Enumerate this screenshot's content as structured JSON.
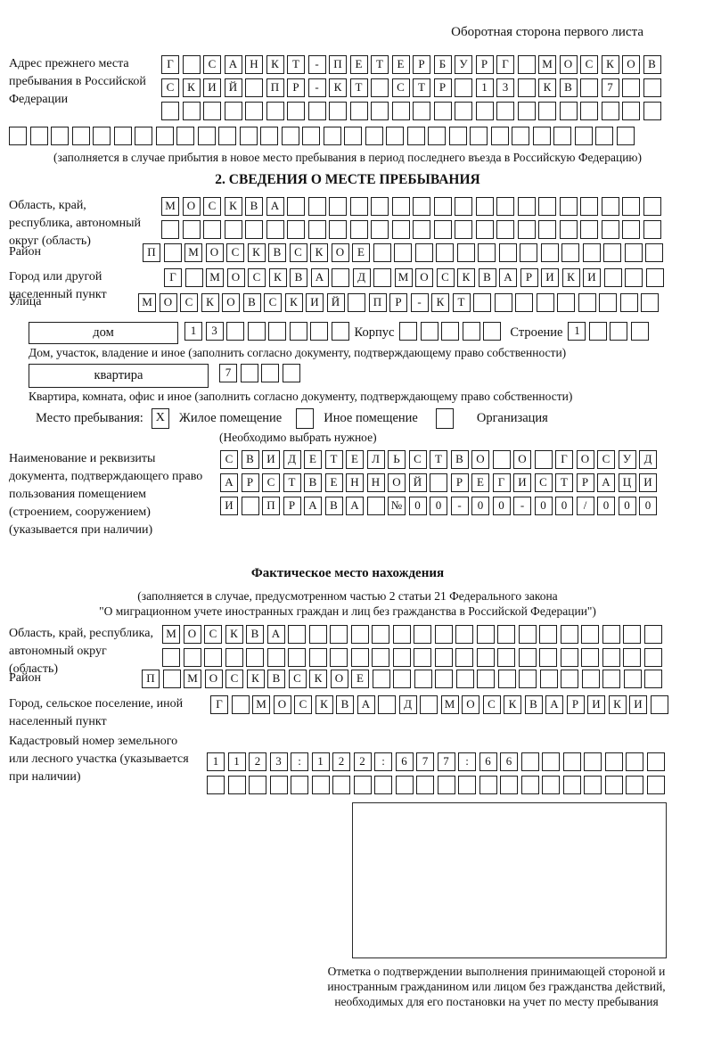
{
  "page": {
    "title_right": "Оборотная сторона первого листа"
  },
  "addr_prev": {
    "label": "Адрес прежнего места пребывания в Российской Федерации",
    "rows": [
      {
        "chars": "Г САНКТ-ПЕТЕРБУРГ МОСКОВ",
        "n": 24
      },
      {
        "chars": "СКИЙ ПР-КТ СТР 13 КВ 7",
        "n": 24
      },
      {
        "chars": "",
        "n": 24
      },
      {
        "chars": "",
        "n": 30
      }
    ],
    "note": "(заполняется в случае прибытия в новое место пребывания в период последнего въезда в Российскую Федерацию)"
  },
  "section2": {
    "title": "2. СВЕДЕНИЯ О МЕСТЕ ПРЕБЫВАНИЯ",
    "oblast": {
      "label": "Область, край, республика, автономный округ (область)",
      "rows": [
        {
          "chars": "МОСКВА",
          "n": 24
        },
        {
          "chars": "",
          "n": 24
        }
      ]
    },
    "raion": {
      "label": "Район",
      "row": {
        "chars": "П МОСКВСКОЕ",
        "n": 25
      }
    },
    "gorod": {
      "label": "Город или другой населенный пункт",
      "row": {
        "chars": "Г МОСКВА Д МОСКВАРИКИ",
        "n": 24
      }
    },
    "ulitsa": {
      "label": "Улица",
      "row": {
        "chars": "МОСКОВСКИЙ ПР-КТ",
        "n": 25
      }
    },
    "dom": {
      "box_label": "дом",
      "cells": {
        "chars": "13",
        "n": 8
      },
      "korpus_label": "Корпус",
      "korpus_cells": {
        "chars": "",
        "n": 5
      },
      "stroenie_label": "Строение",
      "stroenie_cells": {
        "chars": "1",
        "n": 4
      },
      "note": "Дом, участок, владение и иное (заполнить согласно документу, подтверждающему право собственности)"
    },
    "kvartira": {
      "box_label": "квартира",
      "cells": {
        "chars": "7",
        "n": 4
      },
      "note": "Квартира, комната, офис и иное (заполнить согласно документу, подтверждающему право собственности)"
    },
    "mesto": {
      "label": "Место пребывания:",
      "options": [
        {
          "label": "Жилое помещение",
          "box": "X"
        },
        {
          "label": "Иное помещение",
          "box": ""
        },
        {
          "label": "Организация",
          "box": ""
        }
      ],
      "note": "(Необходимо выбрать нужное)"
    },
    "doc": {
      "label": "Наименование и реквизиты документа, подтверждающего право пользования помещением (строением, сооружением) (указывается при наличии)",
      "rows": [
        {
          "chars": "СВИДЕТЕЛЬСТВО О ГОСУД",
          "n": 21
        },
        {
          "chars": "АРСТВЕННОЙ РЕГИСТРАЦИ",
          "n": 21
        },
        {
          "chars": "И ПРАВА №00-00-00/000",
          "n": 21
        }
      ]
    }
  },
  "fact": {
    "title": "Фактическое место нахождения",
    "note1": "(заполняется в случае, предусмотренном частью 2 статьи 21 Федерального закона",
    "note2": "\"О миграционном учете иностранных граждан и лиц без гражданства в Российской Федерации\")",
    "oblast": {
      "label": "Область, край, республика, автономный округ (область)",
      "rows": [
        {
          "chars": "МОСКВА",
          "n": 24
        },
        {
          "chars": "",
          "n": 24
        }
      ]
    },
    "raion": {
      "label": "Район",
      "row": {
        "chars": "П МОСКВСКОЕ",
        "n": 25
      }
    },
    "gorod": {
      "label": "Город, сельское поселение, иной населенный пункт",
      "row": {
        "chars": "Г МОСКВА Д МОСКВАРИКИ",
        "n": 22
      }
    },
    "kadastr": {
      "label": "Кадастровый номер земельного или лесного участка (указывается при наличии)",
      "rows": [
        {
          "chars": "1123:122:677:66",
          "n": 22
        },
        {
          "chars": "",
          "n": 22
        }
      ]
    },
    "stamp_caption": "Отметка о подтверждении выполнения принимающей стороной и иностранным гражданином или лицом без гражданства действий, необходимых для его постановки на учет по месту пребывания"
  }
}
